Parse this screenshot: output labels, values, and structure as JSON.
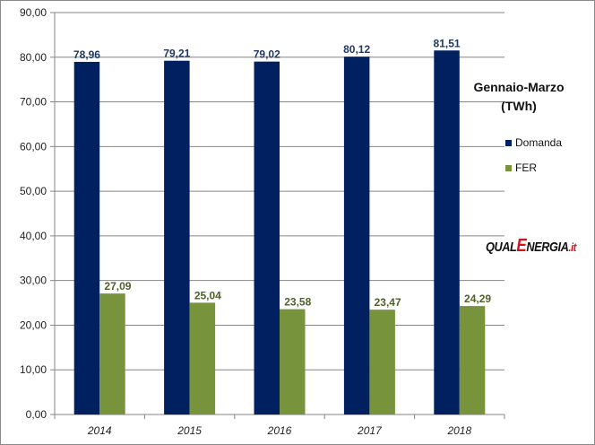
{
  "chart_data": {
    "type": "bar",
    "title": "Gennaio-Marzo (TWh)",
    "title_lines": [
      "Gennaio-Marzo",
      "(TWh)"
    ],
    "categories": [
      "2014",
      "2015",
      "2016",
      "2017",
      "2018"
    ],
    "series": [
      {
        "name": "Domanda",
        "color": "#002060",
        "label_color": "#1f3864",
        "values": [
          78.96,
          79.21,
          79.02,
          80.12,
          81.51
        ],
        "labels": [
          "78,96",
          "79,21",
          "79,02",
          "80,12",
          "81,51"
        ]
      },
      {
        "name": "FER",
        "color": "#77933c",
        "label_color": "#4f6228",
        "values": [
          27.09,
          25.04,
          23.58,
          23.47,
          24.29
        ],
        "labels": [
          "27,09",
          "25,04",
          "23,58",
          "23,47",
          "24,29"
        ]
      }
    ],
    "ylim": [
      0,
      90
    ],
    "yticks": [
      0,
      10,
      20,
      30,
      40,
      50,
      60,
      70,
      80,
      90
    ],
    "ytick_labels": [
      "0,00",
      "10,00",
      "20,00",
      "30,00",
      "40,00",
      "50,00",
      "60,00",
      "70,00",
      "80,00",
      "90,00"
    ],
    "grid": true,
    "legend_position": "right",
    "xlabel": "",
    "ylabel": ""
  },
  "logo": {
    "part1": "QUAL",
    "part2": "E",
    "part3": "NERGIA",
    "part4": ".it"
  }
}
